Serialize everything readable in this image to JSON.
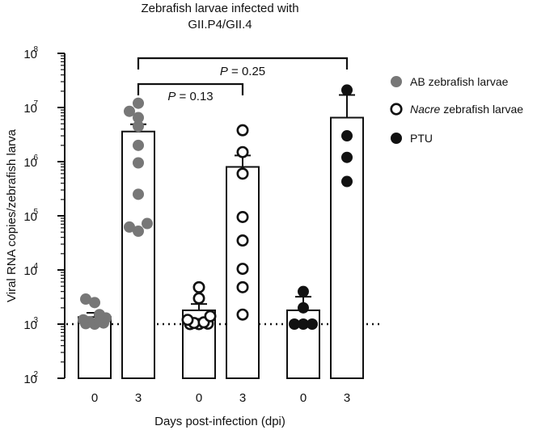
{
  "chart_data": {
    "type": "bar",
    "title_lines": [
      "Zebrafish larvae infected with",
      "GII.P4/GII.4"
    ],
    "xlabel": "Days post-infection (dpi)",
    "ylabel": "Viral RNA copies/zebrafish larva",
    "yscale": "log",
    "ylim": [
      100,
      100000000
    ],
    "y_ticks": [
      {
        "base": "10",
        "exp": "2",
        "value": 100
      },
      {
        "base": "10",
        "exp": "3",
        "value": 1000
      },
      {
        "base": "10",
        "exp": "4",
        "value": 10000
      },
      {
        "base": "10",
        "exp": "5",
        "value": 100000
      },
      {
        "base": "10",
        "exp": "6",
        "value": 1000000
      },
      {
        "base": "10",
        "exp": "7",
        "value": 10000000
      },
      {
        "base": "10",
        "exp": "8",
        "value": 100000000
      }
    ],
    "detection_limit": 1000,
    "grid": false,
    "legend_position": "right",
    "legend": [
      {
        "label": "AB zebrafish larvae",
        "italic_prefix": "",
        "marker": "filled-gray",
        "color": "#777777"
      },
      {
        "label": " zebrafish larvae",
        "italic_prefix": "Nacre",
        "marker": "open",
        "color": "#111111"
      },
      {
        "label": "PTU",
        "italic_prefix": "",
        "marker": "filled-black",
        "color": "#111111"
      }
    ],
    "groups": [
      {
        "category": "0",
        "series": "AB zebrafish larvae",
        "mean": 1350,
        "sem_upper": 1620,
        "points": [
          1000,
          1020,
          1050,
          1100,
          1150,
          1200,
          1300,
          1500,
          2500,
          2900
        ]
      },
      {
        "category": "3",
        "series": "AB zebrafish larvae",
        "mean": 3600000,
        "sem_upper": 4900000,
        "points": [
          52000,
          62000,
          72000,
          250000,
          950000,
          2000000,
          4500000,
          6500000,
          8500000,
          12000000
        ]
      },
      {
        "category": "0",
        "series": "Nacre zebrafish larvae",
        "mean": 1800,
        "sem_upper": 2350,
        "points": [
          1000,
          1000,
          1020,
          1050,
          1080,
          1200,
          1400,
          3000,
          4800
        ]
      },
      {
        "category": "3",
        "series": "Nacre zebrafish larvae",
        "mean": 800000,
        "sem_upper": 1300000,
        "points": [
          1500,
          4800,
          10500,
          35000,
          95000,
          600000,
          1500000,
          3800000
        ]
      },
      {
        "category": "0",
        "series": "PTU",
        "mean": 1800,
        "sem_upper": 3200,
        "points": [
          1000,
          1000,
          1000,
          2000,
          4000
        ]
      },
      {
        "category": "3",
        "series": "PTU",
        "mean": 6500000,
        "sem_upper": 17000000,
        "points": [
          430000,
          1200000,
          3000000,
          21000000
        ]
      }
    ],
    "comparisons": [
      {
        "label_italic": "P",
        "label_rest": " = 0.13",
        "from_group": 1,
        "to_group": 3
      },
      {
        "label_italic": "P",
        "label_rest": " = 0.25",
        "from_group": 1,
        "to_group": 5
      }
    ]
  }
}
